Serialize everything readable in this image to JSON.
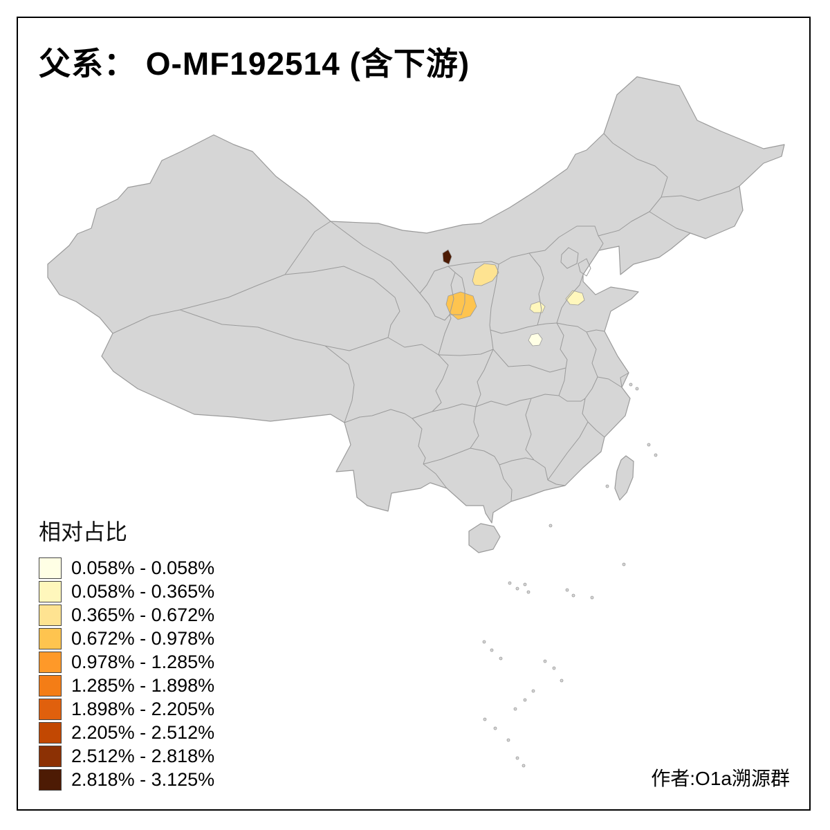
{
  "title": "父系： O-MF192514 (含下游)",
  "legend": {
    "title": "相对占比",
    "items": [
      {
        "range": "0.058% - 0.058%",
        "color": "#FFFFE5"
      },
      {
        "range": "0.058% - 0.365%",
        "color": "#FFF7BC"
      },
      {
        "range": "0.365% - 0.672%",
        "color": "#FEE391"
      },
      {
        "range": "0.672% - 0.978%",
        "color": "#FEC44F"
      },
      {
        "range": "0.978% - 1.285%",
        "color": "#FE9929"
      },
      {
        "range": "1.285% - 1.898%",
        "color": "#F47D16"
      },
      {
        "range": "1.898% - 2.205%",
        "color": "#E0600D"
      },
      {
        "range": "2.205% - 2.512%",
        "color": "#C24802"
      },
      {
        "range": "2.512% - 2.818%",
        "color": "#8C3104"
      },
      {
        "range": "2.818% - 3.125%",
        "color": "#4D1B04"
      }
    ]
  },
  "credit": "作者:O1a溯源群",
  "map": {
    "land_fill": "#D6D6D6",
    "province_border_color": "#9A9A9A",
    "frame_color": "#000000",
    "background": "#FFFFFF",
    "regions": [
      {
        "id": "region-1",
        "value_class": "2.818% - 3.125%",
        "color": "#4D1B04"
      },
      {
        "id": "region-2",
        "value_class": "0.365% - 0.672%",
        "color": "#FEE391"
      },
      {
        "id": "region-3",
        "value_class": "0.672% - 0.978%",
        "color": "#FEC44F"
      },
      {
        "id": "region-4",
        "value_class": "0.058% - 0.365%",
        "color": "#FFF7BC"
      },
      {
        "id": "region-5",
        "value_class": "0.058% - 0.365%",
        "color": "#FFF7BC"
      },
      {
        "id": "region-6",
        "value_class": "0.058% - 0.058%",
        "color": "#FFFFE5"
      }
    ]
  }
}
